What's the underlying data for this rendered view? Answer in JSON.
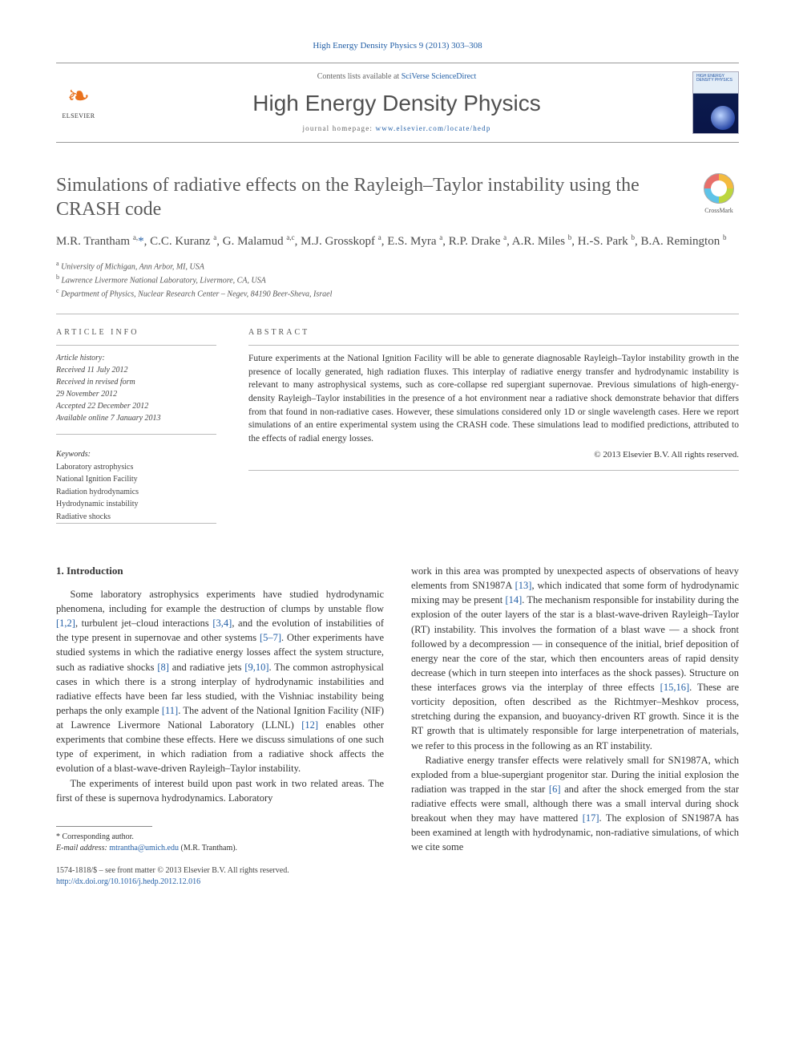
{
  "citation": {
    "journal": "High Energy Density Physics",
    "ref": "9 (2013) 303–308"
  },
  "header": {
    "contents_prefix": "Contents lists available at ",
    "contents_link": "SciVerse ScienceDirect",
    "journal_name": "High Energy Density Physics",
    "homepage_prefix": "journal homepage: ",
    "homepage_url": "www.elsevier.com/locate/hedp",
    "publisher": "ELSEVIER",
    "cover_text": "HIGH ENERGY DENSITY PHYSICS"
  },
  "crossmark_label": "CrossMark",
  "title": "Simulations of radiative effects on the Rayleigh–Taylor instability using the CRASH code",
  "authors_html": "M.R. Trantham <sup>a,</sup><a>*</a>, C.C. Kuranz <sup>a</sup>, G. Malamud <sup>a,c</sup>, M.J. Grosskopf <sup>a</sup>, E.S. Myra <sup>a</sup>, R.P. Drake <sup>a</sup>, A.R. Miles <sup>b</sup>, H.-S. Park <sup>b</sup>, B.A. Remington <sup>b</sup>",
  "affiliations": [
    {
      "sup": "a",
      "text": "University of Michigan, Ann Arbor, MI, USA"
    },
    {
      "sup": "b",
      "text": "Lawrence Livermore National Laboratory, Livermore, CA, USA"
    },
    {
      "sup": "c",
      "text": "Department of Physics, Nuclear Research Center – Negev, 84190 Beer-Sheva, Israel"
    }
  ],
  "info_head": "ARTICLE INFO",
  "abstract_head": "ABSTRACT",
  "history_label": "Article history:",
  "history": [
    "Received 11 July 2012",
    "Received in revised form",
    "29 November 2012",
    "Accepted 22 December 2012",
    "Available online 7 January 2013"
  ],
  "keywords_label": "Keywords:",
  "keywords": [
    "Laboratory astrophysics",
    "National Ignition Facility",
    "Radiation hydrodynamics",
    "Hydrodynamic instability",
    "Radiative shocks"
  ],
  "abstract": "Future experiments at the National Ignition Facility will be able to generate diagnosable Rayleigh–Taylor instability growth in the presence of locally generated, high radiation fluxes. This interplay of radiative energy transfer and hydrodynamic instability is relevant to many astrophysical systems, such as core-collapse red supergiant supernovae. Previous simulations of high-energy-density Rayleigh–Taylor instabilities in the presence of a hot environment near a radiative shock demonstrate behavior that differs from that found in non-radiative cases. However, these simulations considered only 1D or single wavelength cases. Here we report simulations of an entire experimental system using the CRASH code. These simulations lead to modified predictions, attributed to the effects of radial energy losses.",
  "copyright": "© 2013 Elsevier B.V. All rights reserved.",
  "section1_head": "1. Introduction",
  "para1_html": "Some laboratory astrophysics experiments have studied hydrodynamic phenomena, including for example the destruction of clumps by unstable flow <a>[1,2]</a>, turbulent jet–cloud interactions <a>[3,4]</a>, and the evolution of instabilities of the type present in supernovae and other systems <a>[5–7]</a>. Other experiments have studied systems in which the radiative energy losses affect the system structure, such as radiative shocks <a>[8]</a> and radiative jets <a>[9,10]</a>. The common astrophysical cases in which there is a strong interplay of hydrodynamic instabilities and radiative effects have been far less studied, with the Vishniac instability being perhaps the only example <a>[11]</a>. The advent of the National Ignition Facility (NIF) at Lawrence Livermore National Laboratory (LLNL) <a>[12]</a> enables other experiments that combine these effects. Here we discuss simulations of one such type of experiment, in which radiation from a radiative shock affects the evolution of a blast-wave-driven Rayleigh–Taylor instability.",
  "para2_html": "The experiments of interest build upon past work in two related areas. The first of these is supernova hydrodynamics. Laboratory",
  "para3_html": "work in this area was prompted by unexpected aspects of observations of heavy elements from SN1987A <a>[13]</a>, which indicated that some form of hydrodynamic mixing may be present <a>[14]</a>. The mechanism responsible for instability during the explosion of the outer layers of the star is a blast-wave-driven Rayleigh–Taylor (RT) instability. This involves the formation of a blast wave — a shock front followed by a decompression — in consequence of the initial, brief deposition of energy near the core of the star, which then encounters areas of rapid density decrease (which in turn steepen into interfaces as the shock passes). Structure on these interfaces grows via the interplay of three effects <a>[15,16]</a>. These are vorticity deposition, often described as the Richtmyer–Meshkov process, stretching during the expansion, and buoyancy-driven RT growth. Since it is the RT growth that is ultimately responsible for large interpenetration of materials, we refer to this process in the following as an RT instability.",
  "para4_html": "Radiative energy transfer effects were relatively small for SN1987A, which exploded from a blue-supergiant progenitor star. During the initial explosion the radiation was trapped in the star <a>[6]</a> and after the shock emerged from the star radiative effects were small, although there was a small interval during shock breakout when they may have mattered <a>[17]</a>. The explosion of SN1987A has been examined at length with hydrodynamic, non-radiative simulations, of which we cite some",
  "footnote": {
    "corr": "* Corresponding author.",
    "email_label": "E-mail address:",
    "email": "mtrantha@umich.edu",
    "email_name": "(M.R. Trantham)."
  },
  "footer": {
    "issn_line": "1574-1818/$ – see front matter © 2013 Elsevier B.V. All rights reserved.",
    "doi": "http://dx.doi.org/10.1016/j.hedp.2012.12.016"
  },
  "colors": {
    "link": "#2460a7",
    "text": "#333333",
    "orange": "#e9711c",
    "rule": "#bbbbbb"
  }
}
